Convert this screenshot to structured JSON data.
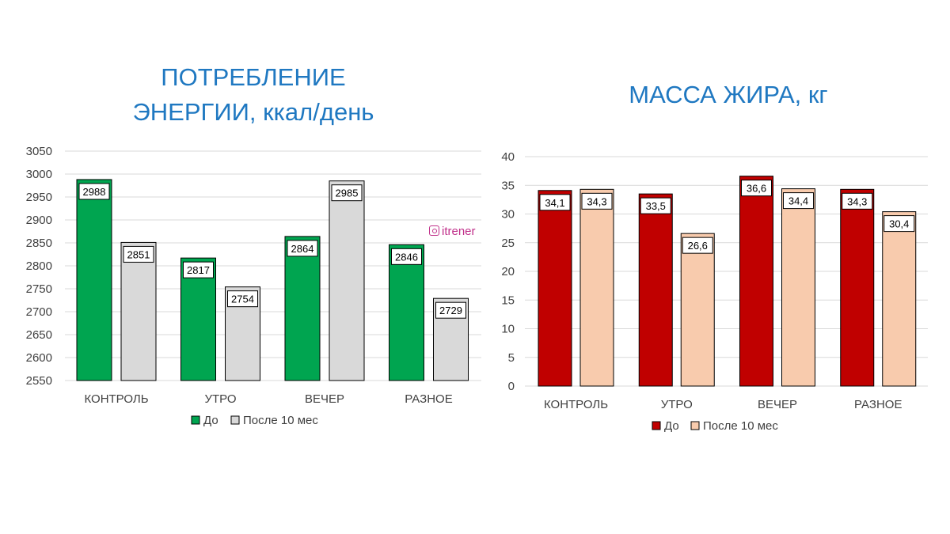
{
  "chart_data": [
    {
      "type": "bar",
      "title_lines": [
        "ПОТРЕБЛЕНИЕ",
        "ЭНЕРГИИ, ккал/день"
      ],
      "categories": [
        "КОНТРОЛЬ",
        "УТРО",
        "ВЕЧЕР",
        "РАЗНОЕ"
      ],
      "series": [
        {
          "name": "До",
          "values": [
            2988,
            2817,
            2864,
            2846
          ],
          "labels": [
            "2988",
            "2817",
            "2864",
            "2846"
          ],
          "color": "#00a550"
        },
        {
          "name": "После 10 мес",
          "values": [
            2851,
            2754,
            2985,
            2729
          ],
          "labels": [
            "2851",
            "2754",
            "2985",
            "2729"
          ],
          "color": "#d9d9d9"
        }
      ],
      "ylim": [
        2550,
        3050
      ],
      "yticks": [
        "2550",
        "2600",
        "2650",
        "2700",
        "2750",
        "2800",
        "2850",
        "2900",
        "2950",
        "3000",
        "3050"
      ],
      "grid": true,
      "legend_position": "bottom"
    },
    {
      "type": "bar",
      "title_lines": [
        "МАССА ЖИРА, кг"
      ],
      "categories": [
        "КОНТРОЛЬ",
        "УТРО",
        "ВЕЧЕР",
        "РАЗНОЕ"
      ],
      "series": [
        {
          "name": "До",
          "values": [
            34.1,
            33.5,
            36.6,
            34.3
          ],
          "labels": [
            "34,1",
            "33,5",
            "36,6",
            "34,3"
          ],
          "color": "#c00000"
        },
        {
          "name": "После 10 мес",
          "values": [
            34.3,
            26.6,
            34.4,
            30.4
          ],
          "labels": [
            "34,3",
            "26,6",
            "34,4",
            "30,4"
          ],
          "color": "#f8cbad"
        }
      ],
      "ylim": [
        0,
        40
      ],
      "yticks": [
        "0",
        "5",
        "10",
        "15",
        "20",
        "25",
        "30",
        "35",
        "40"
      ],
      "grid": true,
      "legend_position": "bottom"
    }
  ],
  "watermark": "itrener"
}
